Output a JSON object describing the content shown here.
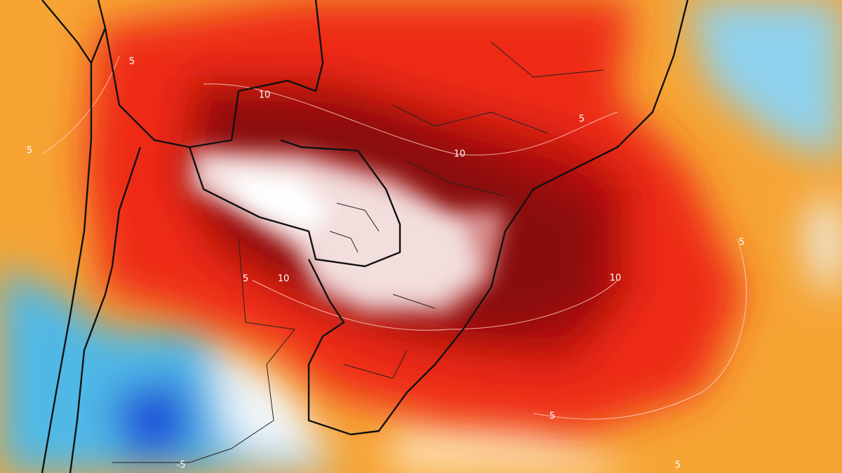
{
  "contour_labels": [
    10,
    10,
    10,
    10,
    5,
    5,
    5,
    5,
    5,
    5,
    5,
    -5
  ]
}
